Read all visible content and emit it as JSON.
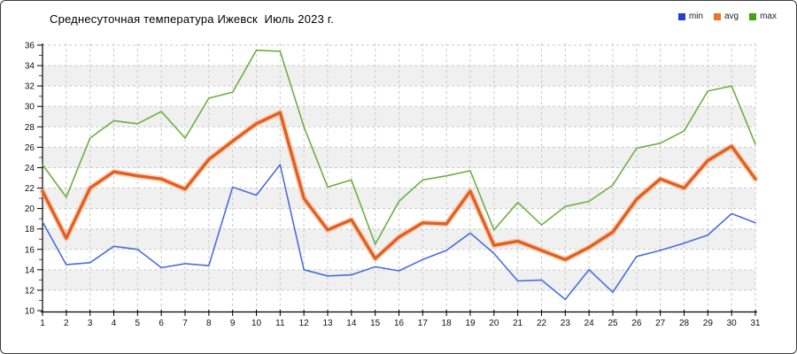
{
  "window": {
    "border_color": "#3c3c3c",
    "background": "#ffffff"
  },
  "chart_data": {
    "type": "line",
    "title": "Среднесуточная температура Ижевск  Июль 2023 г.",
    "xlabel": "",
    "ylabel": "",
    "categories": [
      1,
      2,
      3,
      4,
      5,
      6,
      7,
      8,
      9,
      10,
      11,
      12,
      13,
      14,
      15,
      16,
      17,
      18,
      19,
      20,
      21,
      22,
      23,
      24,
      25,
      26,
      27,
      28,
      29,
      30,
      31
    ],
    "series": [
      {
        "name": "min",
        "color": "#4a6edb",
        "legend_color": "#2440d8",
        "stroke_width": 1.6,
        "values": [
          18.7,
          14.5,
          14.7,
          16.3,
          16.0,
          14.2,
          14.6,
          14.4,
          22.1,
          21.3,
          24.3,
          14.0,
          13.4,
          13.5,
          14.3,
          13.9,
          15.0,
          15.9,
          17.6,
          15.6,
          12.9,
          13.0,
          11.1,
          14.0,
          11.8,
          15.3,
          15.9,
          16.6,
          17.4,
          19.5,
          18.6
        ]
      },
      {
        "name": "avg",
        "color": "#e2601f",
        "legend_color": "#ed7430",
        "stroke_width": 3.4,
        "halo_color": "#f8b48c",
        "values": [
          21.7,
          17.1,
          22.0,
          23.6,
          23.2,
          22.9,
          21.9,
          24.8,
          26.6,
          28.3,
          29.4,
          21.0,
          17.9,
          18.9,
          15.1,
          17.2,
          18.6,
          18.5,
          21.7,
          16.4,
          16.8,
          15.9,
          15.0,
          16.2,
          17.7,
          20.9,
          22.9,
          22.0,
          24.7,
          26.1,
          22.9
        ]
      },
      {
        "name": "max",
        "color": "#6fae42",
        "legend_color": "#3fa313",
        "stroke_width": 1.6,
        "values": [
          24.3,
          21.1,
          26.9,
          28.6,
          28.3,
          29.5,
          26.9,
          30.8,
          31.4,
          35.5,
          35.4,
          28.0,
          22.1,
          22.8,
          16.5,
          20.7,
          22.8,
          23.2,
          23.7,
          17.9,
          20.6,
          18.4,
          20.2,
          20.7,
          22.3,
          25.9,
          26.4,
          27.6,
          31.5,
          32.0,
          26.3
        ]
      }
    ],
    "ylim": [
      10,
      36
    ],
    "y_tick_step": 2,
    "y_minor_tick_step": 1,
    "x_tick_labels": [
      "1",
      "2",
      "3",
      "4",
      "5",
      "6",
      "7",
      "8",
      "9",
      "10",
      "11",
      "12",
      "13",
      "14",
      "15",
      "16",
      "17",
      "18",
      "19",
      "20",
      "21",
      "22",
      "23",
      "24",
      "25",
      "26",
      "27",
      "28",
      "29",
      "30",
      "31"
    ],
    "y_tick_labels": [
      "10",
      "12",
      "14",
      "16",
      "18",
      "20",
      "22",
      "24",
      "26",
      "28",
      "30",
      "32",
      "34",
      "36"
    ],
    "grid": "dashed, horizontal every 2 units, vertical every day",
    "grid_color": "#c9c9c9",
    "stripe_color": "#f0f0f0",
    "stripe_bands": [
      [
        12,
        14
      ],
      [
        16,
        18
      ],
      [
        20,
        22
      ],
      [
        24,
        26
      ],
      [
        28,
        30
      ],
      [
        32,
        34
      ]
    ],
    "axis_color": "#000000",
    "minor_tick_color": "#cc2222",
    "tick_label_color": "#111111",
    "legend_position": "top-right"
  }
}
